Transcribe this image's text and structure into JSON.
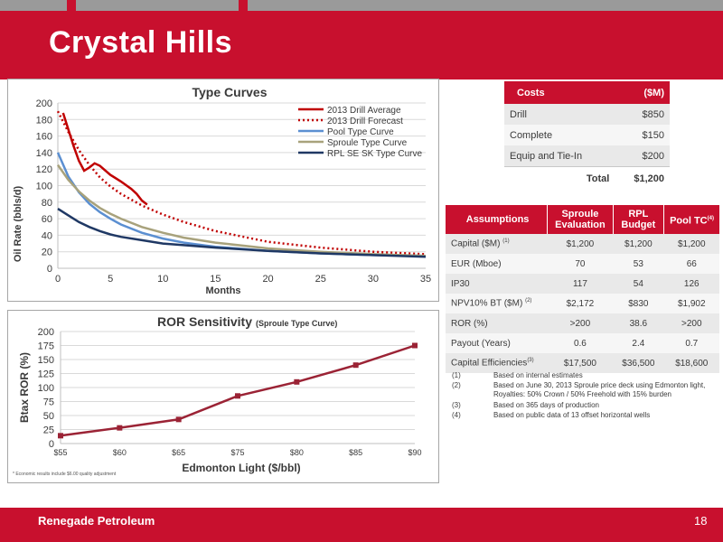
{
  "header": {
    "title": "Crystal Hills"
  },
  "footer": {
    "company": "Renegade Petroleum",
    "page": "18"
  },
  "colors": {
    "brand_red": "#c8102e",
    "type_avg": "#c00000",
    "type_forecast": "#c00000",
    "pool": "#5b8fd1",
    "sproule": "#a8a27c",
    "rpl": "#1f3864",
    "ror_line": "#9b2335"
  },
  "costs": {
    "header": [
      "Costs",
      "($M)"
    ],
    "rows": [
      {
        "label": "Drill",
        "value": "$850"
      },
      {
        "label": "Complete",
        "value": "$150"
      },
      {
        "label": "Equip and Tie-In",
        "value": "$200"
      }
    ],
    "total_label": "Total",
    "total_value": "$1,200"
  },
  "assumptions": {
    "header": [
      "Assumptions",
      "Sproule Evaluation",
      "RPL Budget",
      "Pool TC"
    ],
    "header_note": "(4)",
    "rows": [
      {
        "label": "Capital ($M)",
        "note": "(1)",
        "values": [
          "$1,200",
          "$1,200",
          "$1,200"
        ]
      },
      {
        "label": "EUR (Mboe)",
        "note": "",
        "values": [
          "70",
          "53",
          "66"
        ]
      },
      {
        "label": "IP30",
        "note": "",
        "values": [
          "117",
          "54",
          "126"
        ]
      },
      {
        "label": "NPV10% BT ($M)",
        "note": "(2)",
        "values": [
          "$2,172",
          "$830",
          "$1,902"
        ]
      },
      {
        "label": "ROR (%)",
        "note": "",
        "values": [
          ">200",
          "38.6",
          ">200"
        ]
      },
      {
        "label": "Payout (Years)",
        "note": "",
        "values": [
          "0.6",
          "2.4",
          "0.7"
        ]
      },
      {
        "label": "Capital Efficiencies",
        "note": "(3)",
        "values": [
          "$17,500",
          "$36,500",
          "$18,600"
        ]
      }
    ]
  },
  "footnotes": [
    {
      "num": "(1)",
      "text": "Based on internal estimates"
    },
    {
      "num": "(2)",
      "text": "Based on June 30, 2013 Sproule price deck using Edmonton light, Royalties: 50% Crown / 50% Freehold with 15% burden"
    },
    {
      "num": "(3)",
      "text": "Based on 365 days of production"
    },
    {
      "num": "(4)",
      "text": "Based on public data of 13 offset horizontal wells"
    }
  ],
  "ror_note": "* Economic results include $6.00 quality adjustment",
  "chart_data": [
    {
      "type": "line",
      "title": "Type Curves",
      "xlabel": "Months",
      "ylabel": "Oil Rate (bbls/d)",
      "xlim": [
        0,
        35
      ],
      "ylim": [
        0,
        200
      ],
      "xticks": [
        0,
        5,
        10,
        15,
        20,
        25,
        30,
        35
      ],
      "yticks": [
        0,
        20,
        40,
        60,
        80,
        100,
        120,
        140,
        160,
        180,
        200
      ],
      "grid": true,
      "legend": "top-right",
      "series": [
        {
          "name": "2013 Drill Average",
          "style": "solid",
          "color": "#c00000",
          "x": [
            0.5,
            1,
            1.5,
            2,
            2.5,
            3,
            3.5,
            4,
            5,
            6,
            7,
            7.5,
            8,
            8.5
          ],
          "y": [
            188,
            168,
            148,
            130,
            118,
            122,
            127,
            124,
            113,
            105,
            96,
            90,
            82,
            77
          ]
        },
        {
          "name": "2013 Drill Forecast",
          "style": "dotted",
          "color": "#c00000",
          "x": [
            0,
            1,
            2,
            3,
            4,
            5,
            6,
            8,
            10,
            12,
            15,
            20,
            25,
            30,
            35
          ],
          "y": [
            190,
            165,
            143,
            125,
            110,
            99,
            90,
            76,
            65,
            56,
            45,
            32,
            25,
            20,
            17
          ]
        },
        {
          "name": "Pool Type Curve",
          "style": "solid",
          "color": "#5b8fd1",
          "x": [
            0,
            1,
            2,
            3,
            4,
            5,
            6,
            8,
            10,
            12,
            15,
            20,
            25,
            30,
            35
          ],
          "y": [
            140,
            111,
            92,
            78,
            68,
            60,
            53,
            43,
            36,
            31,
            26,
            21,
            18,
            16,
            15
          ]
        },
        {
          "name": "Sproule Type Curve",
          "style": "solid",
          "color": "#a8a27c",
          "x": [
            0,
            1,
            2,
            3,
            4,
            5,
            6,
            8,
            10,
            12,
            15,
            20,
            25,
            30,
            35
          ],
          "y": [
            125,
            107,
            93,
            82,
            73,
            66,
            60,
            50,
            43,
            37,
            31,
            24,
            20,
            17,
            15
          ]
        },
        {
          "name": "RPL SE SK Type Curve",
          "style": "solid",
          "color": "#1f3864",
          "x": [
            0,
            1,
            2,
            3,
            4,
            5,
            6,
            8,
            10,
            12,
            15,
            20,
            25,
            30,
            35
          ],
          "y": [
            72,
            64,
            56,
            50,
            45,
            41,
            38,
            34,
            30,
            28,
            25,
            21,
            18,
            16,
            14
          ]
        }
      ]
    },
    {
      "type": "line",
      "title": "ROR Sensitivity",
      "subtitle": "(Sproule Type Curve)",
      "xlabel": "Edmonton Light ($/bbl)",
      "ylabel": "Btax ROR (%)",
      "categories": [
        "$55",
        "$60",
        "$65",
        "$75",
        "$80",
        "$85",
        "$90"
      ],
      "ylim": [
        0,
        200
      ],
      "yticks": [
        0,
        25,
        50,
        75,
        100,
        125,
        150,
        175,
        200
      ],
      "grid": true,
      "series": [
        {
          "name": "",
          "color": "#9b2335",
          "values": [
            14,
            28,
            43,
            85,
            110,
            140,
            175
          ]
        }
      ]
    }
  ]
}
